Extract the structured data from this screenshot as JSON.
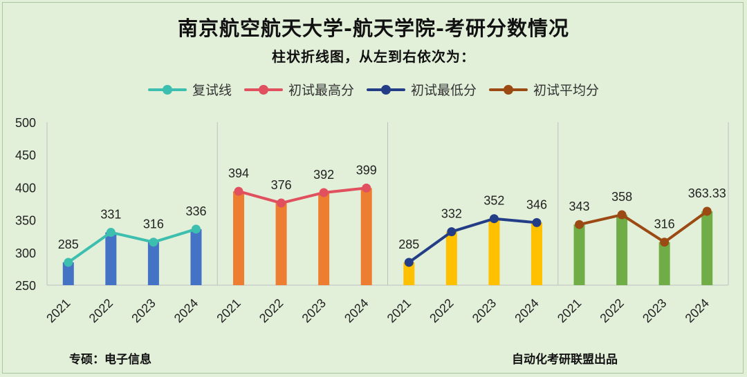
{
  "title": "南京航空航天大学-航天学院-考研分数情况",
  "subtitle": "柱状折线图，从左到右依次为：",
  "legend": [
    {
      "label": "复试线",
      "color": "#3cbfae"
    },
    {
      "label": "初试最高分",
      "color": "#e0505e"
    },
    {
      "label": "初试最低分",
      "color": "#233e87"
    },
    {
      "label": "初试平均分",
      "color": "#9c4a13"
    }
  ],
  "footer": {
    "left": "专硕：电子信息",
    "right": "自动化考研联盟出品"
  },
  "chart_data": {
    "type": "bar",
    "ylim": [
      250,
      500
    ],
    "yticks": [
      250,
      300,
      350,
      400,
      450,
      500
    ],
    "categories": [
      "2021",
      "2022",
      "2023",
      "2024"
    ],
    "series": [
      {
        "name": "复试线",
        "values": [
          285,
          331,
          316,
          336
        ],
        "value_labels": [
          "285",
          "331",
          "316",
          "336"
        ],
        "bar_color": "#4472c4",
        "line_color": "#3cbfae"
      },
      {
        "name": "初试最高分",
        "values": [
          394,
          376,
          392,
          399
        ],
        "value_labels": [
          "394",
          "376",
          "392",
          "399"
        ],
        "bar_color": "#ed7d31",
        "line_color": "#e0505e"
      },
      {
        "name": "初试最低分",
        "values": [
          285,
          332,
          352,
          346
        ],
        "value_labels": [
          "285",
          "332",
          "352",
          "346"
        ],
        "bar_color": "#ffc000",
        "line_color": "#233e87"
      },
      {
        "name": "初试平均分",
        "values": [
          343,
          358,
          316,
          363.33
        ],
        "value_labels": [
          "343",
          "358",
          "316",
          "363.33"
        ],
        "bar_color": "#70ad47",
        "line_color": "#9c4a13"
      }
    ]
  }
}
